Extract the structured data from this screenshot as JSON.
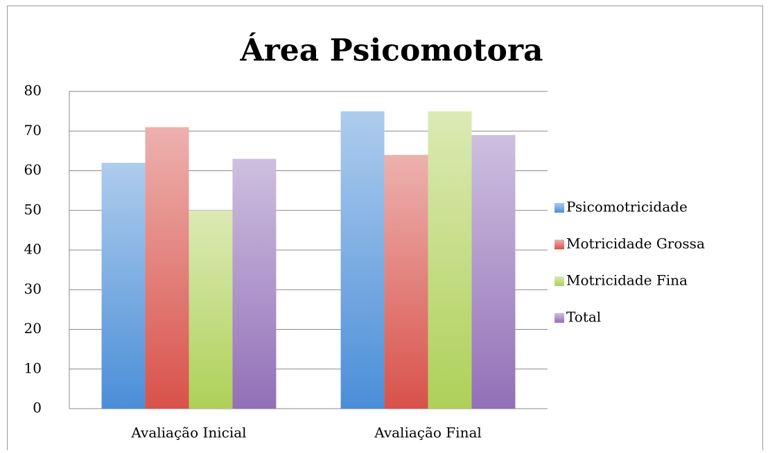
{
  "chart_data": {
    "type": "bar",
    "title": "Área Psicomotora",
    "categories": [
      "Avaliação Inicial",
      "Avaliação Final"
    ],
    "series": [
      {
        "name": "Psicomotricidade",
        "color": "#4a8ed8",
        "values": [
          62,
          75
        ]
      },
      {
        "name": "Motricidade Grossa",
        "color": "#d8524a",
        "values": [
          71,
          64
        ]
      },
      {
        "name": "Motricidade Fina",
        "color": "#aed058",
        "values": [
          50,
          75
        ]
      },
      {
        "name": "Total",
        "color": "#9270b8",
        "values": [
          63,
          69
        ]
      }
    ],
    "ylim": [
      0,
      80
    ],
    "yticks": [
      0,
      10,
      20,
      30,
      40,
      50,
      60,
      70,
      80
    ],
    "grid": true,
    "legend": "right"
  }
}
